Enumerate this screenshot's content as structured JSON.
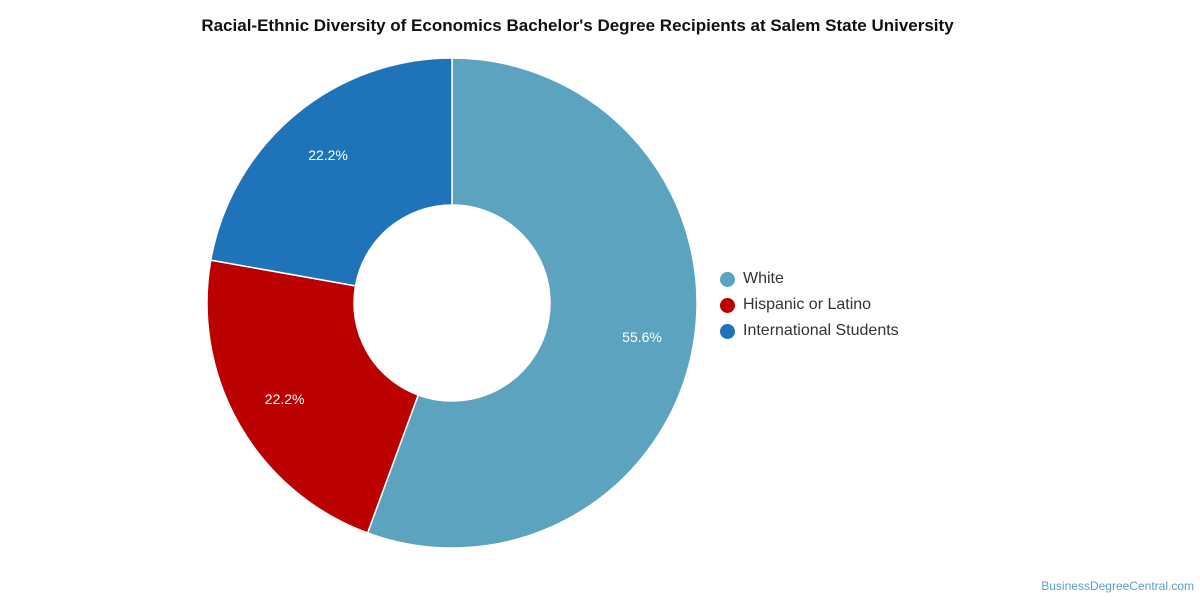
{
  "chart_data": {
    "type": "pie",
    "variant": "donut",
    "title": "Racial-Ethnic Diversity of Economics Bachelor's Degree Recipients at Salem State University",
    "slices": [
      {
        "label": "White",
        "value": 55.6,
        "display": "55.6%",
        "color": "#5ba3bf"
      },
      {
        "label": "Hispanic or Latino",
        "value": 22.2,
        "display": "22.2%",
        "color": "#bb0000"
      },
      {
        "label": "International Students",
        "value": 22.2,
        "display": "22.2%",
        "color": "#1f74b9"
      }
    ],
    "legend_position": "right"
  },
  "watermark": "BusinessDegreeCentral.com"
}
